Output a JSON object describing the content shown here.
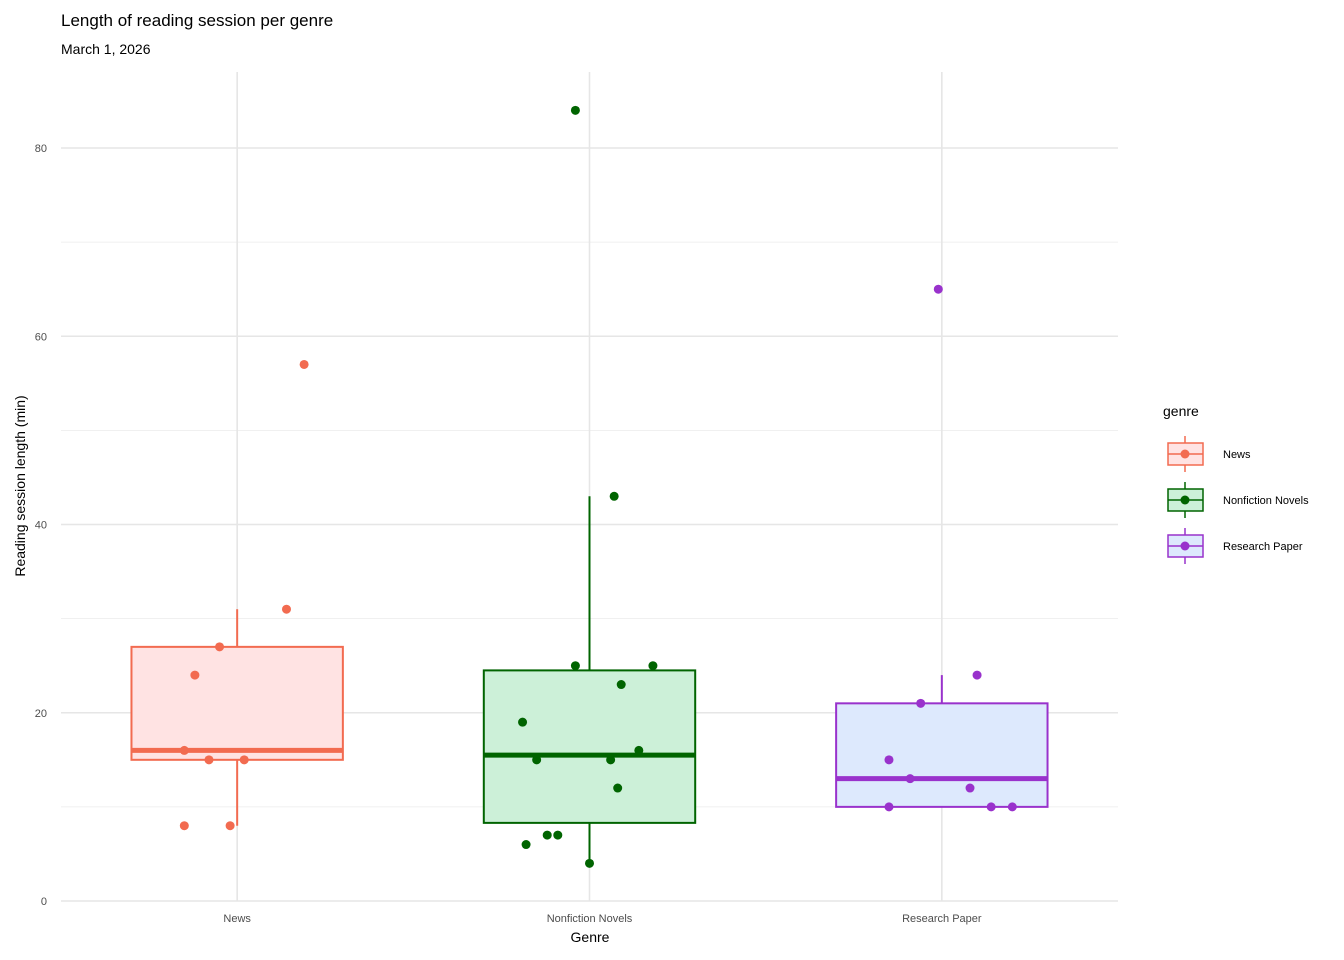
{
  "chart_data": {
    "type": "boxplot",
    "title": "Length of reading session per genre",
    "subtitle": "March 1, 2026",
    "xlabel": "Genre",
    "ylabel": "Reading session length (min)",
    "ylim": [
      0,
      88
    ],
    "yticks": [
      0,
      20,
      40,
      60,
      80
    ],
    "grid": true,
    "legend": {
      "title": "genre",
      "placement": "right"
    },
    "categories": [
      "News",
      "Nonfiction Novels",
      "Research Paper"
    ],
    "series": [
      {
        "name": "News",
        "color": "#f26b50",
        "fill": "#ffe3e3",
        "box": {
          "lower_whisker": 8,
          "q1": 15,
          "median": 16,
          "q3": 27,
          "upper_whisker": 31
        },
        "points": [
          8,
          8,
          15,
          15,
          16,
          24,
          27,
          31,
          57
        ],
        "jitter": [
          -0.15,
          -0.02,
          -0.08,
          0.02,
          -0.15,
          -0.12,
          -0.05,
          0.14,
          0.19
        ]
      },
      {
        "name": "Nonfiction Novels",
        "color": "#006400",
        "fill": "#ccf0d8",
        "box": {
          "lower_whisker": 4,
          "q1": 8.3,
          "median": 15.5,
          "q3": 24.5,
          "upper_whisker": 43
        },
        "points": [
          4,
          6,
          7,
          7,
          12,
          15,
          15,
          16,
          19,
          23,
          25,
          25,
          43,
          84
        ],
        "jitter": [
          0.0,
          -0.18,
          -0.12,
          -0.09,
          0.08,
          -0.15,
          0.06,
          0.14,
          -0.19,
          0.09,
          -0.04,
          0.18,
          0.07,
          -0.04
        ]
      },
      {
        "name": "Research Paper",
        "color": "#9932cc",
        "fill": "#dde9fd",
        "box": {
          "lower_whisker": 10,
          "q1": 10,
          "median": 13,
          "q3": 21,
          "upper_whisker": 24
        },
        "points": [
          10,
          10,
          10,
          12,
          13,
          15,
          21,
          24,
          65
        ],
        "jitter": [
          -0.15,
          0.14,
          0.2,
          0.08,
          -0.09,
          -0.15,
          -0.06,
          0.1,
          -0.01
        ]
      }
    ]
  }
}
